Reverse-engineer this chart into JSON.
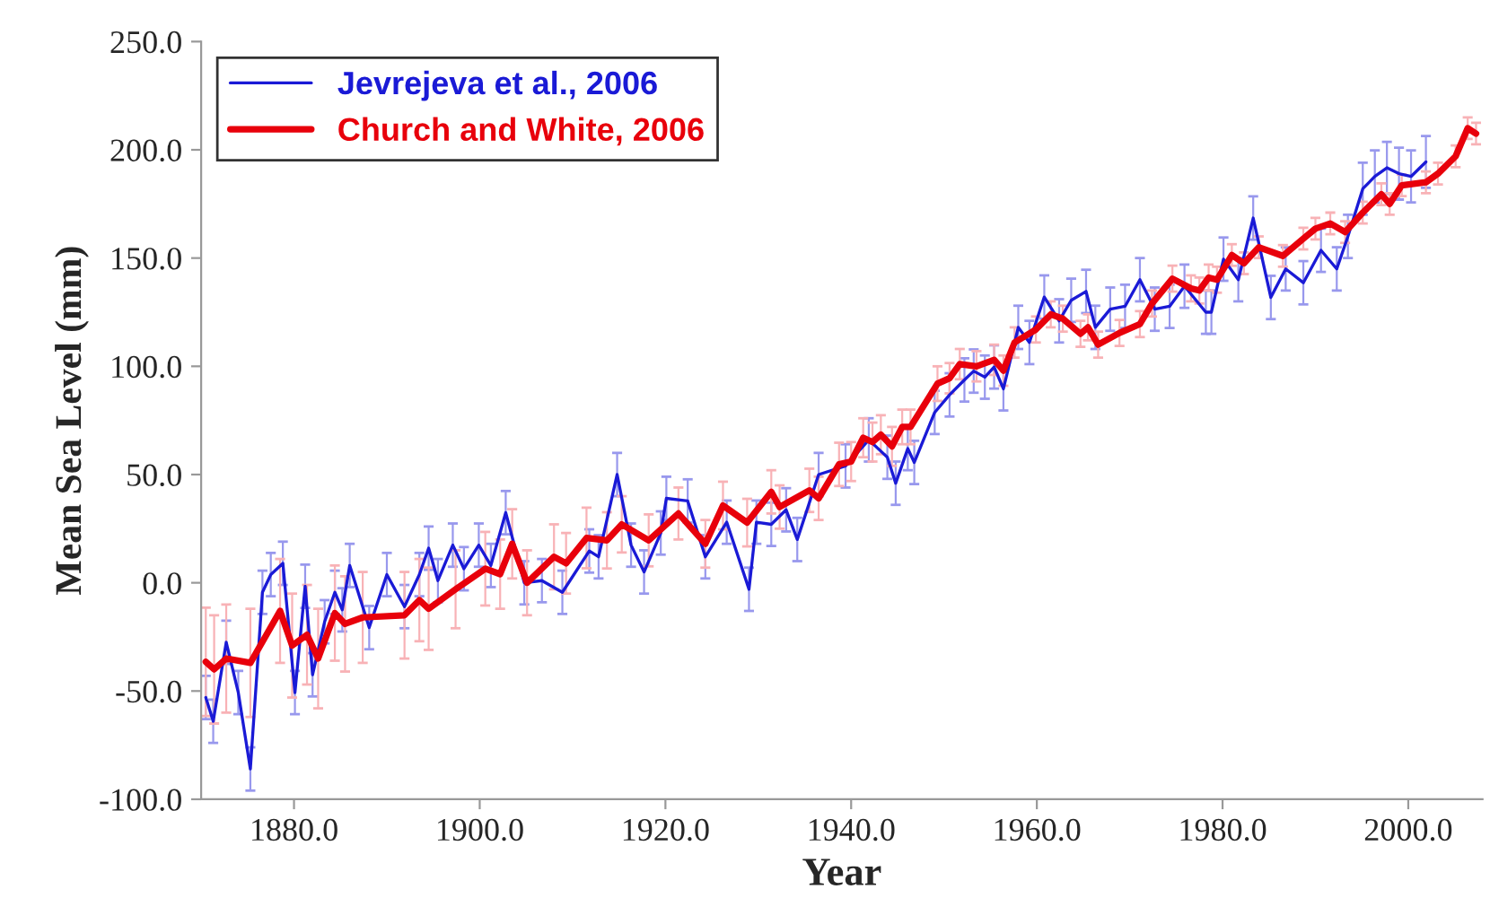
{
  "chart_data": {
    "type": "line",
    "xlabel": "Year",
    "ylabel": "Mean Sea Level (mm)",
    "xlim": [
      1870,
      2008
    ],
    "ylim": [
      -100,
      250
    ],
    "xticks": [
      {
        "value": 1880,
        "label": "1880.0"
      },
      {
        "value": 1900,
        "label": "1900.0"
      },
      {
        "value": 1920,
        "label": "1920.0"
      },
      {
        "value": 1940,
        "label": "1940.0"
      },
      {
        "value": 1960,
        "label": "1960.0"
      },
      {
        "value": 1980,
        "label": "1980.0"
      },
      {
        "value": 2000,
        "label": "2000.0"
      }
    ],
    "yticks": [
      {
        "value": -100,
        "label": "-100.0"
      },
      {
        "value": -50,
        "label": "-50.0"
      },
      {
        "value": 0,
        "label": "0.0"
      },
      {
        "value": 50,
        "label": "50.0"
      },
      {
        "value": 100,
        "label": "100.0"
      },
      {
        "value": 150,
        "label": "150.0"
      },
      {
        "value": 200,
        "label": "200.0"
      },
      {
        "value": 250,
        "label": "250.0"
      }
    ],
    "grid": false,
    "legend": "top left",
    "marker": "none",
    "line_style": "solid",
    "series": [
      {
        "name": "Jevrejeva et al., 2006",
        "color": "#1a1ad6",
        "x": [
          1870.5,
          1871.3,
          1872.7,
          1874,
          1875.3,
          1876.6,
          1877.5,
          1878.8,
          1880.1,
          1881.2,
          1882,
          1883.3,
          1884.4,
          1885.2,
          1886,
          1888.1,
          1890,
          1891.9,
          1893.5,
          1894.5,
          1895.5,
          1897.1,
          1898.3,
          1899.9,
          1901.2,
          1902.8,
          1904.8,
          1906.7,
          1908.9,
          1911.8,
          1912.8,
          1914.8,
          1916.3,
          1917.7,
          1919.5,
          1920.1,
          1922.4,
          1924.3,
          1926.6,
          1929,
          1929.8,
          1931.4,
          1933,
          1934.2,
          1936.5,
          1939.4,
          1941.9,
          1943.9,
          1944.8,
          1946.1,
          1946.8,
          1949,
          1950.6,
          1952.2,
          1953.2,
          1954.4,
          1955.4,
          1956.4,
          1958,
          1959.2,
          1960.8,
          1962.4,
          1963.7,
          1965.3,
          1966.3,
          1967.9,
          1969.5,
          1971.1,
          1972.7,
          1974.3,
          1975.9,
          1978.2,
          1978.8,
          1980.1,
          1981.7,
          1983.3,
          1985.2,
          1986.8,
          1988.7,
          1990.6,
          1992.3,
          1993.5,
          1995.1,
          1996.4,
          1997.7,
          1999,
          2000.3,
          2001.9
        ],
        "values": [
          -53,
          -64,
          -27.5,
          -50.7,
          -86,
          -4.4,
          3.8,
          9,
          -50.7,
          -1.6,
          -42.5,
          -18,
          -4.4,
          -12.5,
          8,
          -20.7,
          3.8,
          -11,
          3.8,
          16,
          1,
          17.4,
          6.5,
          17.4,
          8,
          32.4,
          0,
          1,
          -4.4,
          14.7,
          12,
          50,
          17.4,
          5,
          23,
          39,
          37.8,
          12,
          28,
          -3,
          28,
          27,
          33.7,
          20,
          50,
          54,
          66,
          58,
          46,
          62,
          55.6,
          78.7,
          86.8,
          93.7,
          97.8,
          95,
          99.7,
          89.6,
          118,
          111,
          132,
          121,
          130.5,
          134.6,
          118,
          126.4,
          127.7,
          140,
          126.4,
          127.7,
          137,
          125,
          125,
          149.5,
          140,
          168.5,
          131.8,
          145,
          138.6,
          153.6,
          145,
          160,
          182,
          187.7,
          191.7,
          189,
          187.7,
          194.4
        ],
        "errors": [
          10,
          10,
          10,
          10,
          10,
          10,
          10,
          10,
          10,
          10,
          10,
          10,
          10,
          10,
          10,
          10,
          10,
          10,
          10,
          10,
          10,
          10,
          10,
          10,
          10,
          10,
          10,
          10,
          10,
          10,
          10,
          10,
          10,
          10,
          10,
          10,
          10,
          10,
          10,
          10,
          10,
          10,
          10,
          10,
          10,
          10,
          10,
          10,
          10,
          10,
          10,
          10,
          10,
          10,
          10,
          10,
          10,
          10,
          10,
          10,
          10,
          10,
          10,
          10,
          10,
          10,
          10,
          10,
          10,
          10,
          10,
          10,
          10,
          10,
          10,
          10,
          10,
          10,
          10,
          10,
          10,
          10,
          12,
          12,
          12,
          12,
          12,
          12
        ]
      },
      {
        "name": "Church and White, 2006",
        "color": "#e8000b",
        "x": [
          1870.5,
          1871.4,
          1872.7,
          1875.3,
          1878.5,
          1879.8,
          1881.4,
          1882.6,
          1884.4,
          1885.5,
          1887.4,
          1891.9,
          1893.5,
          1894.5,
          1897.4,
          1900.6,
          1902.2,
          1903.5,
          1905.1,
          1908,
          1909.3,
          1911.5,
          1913.7,
          1915.3,
          1918.2,
          1921.4,
          1924.3,
          1926.2,
          1928.8,
          1931.4,
          1932.3,
          1935.5,
          1936.5,
          1938.7,
          1940,
          1941.3,
          1942.3,
          1943.2,
          1944.4,
          1945.5,
          1946.4,
          1949.3,
          1950.6,
          1951.7,
          1953.5,
          1955.4,
          1956.4,
          1957.6,
          1959.9,
          1961.5,
          1962.8,
          1964.7,
          1965.5,
          1966.6,
          1968.9,
          1971.1,
          1972.4,
          1974.6,
          1976.6,
          1977.5,
          1978.5,
          1979.4,
          1981,
          1982.3,
          1983.9,
          1986.5,
          1988.7,
          1990,
          1991.6,
          1993.2,
          1995.1,
          1997.1,
          1998,
          1999.3,
          2001.9,
          2003.2,
          2005.1,
          2006.4,
          2007.3
        ],
        "values": [
          -36.5,
          -40,
          -35,
          -37,
          -13,
          -29,
          -24,
          -35,
          -14,
          -19,
          -16,
          -15,
          -8,
          -12,
          -3,
          6.5,
          4,
          18,
          0,
          12,
          9,
          20.7,
          19.6,
          27,
          19.6,
          32,
          18,
          35.7,
          27.8,
          42,
          35,
          42.7,
          39,
          54.7,
          56,
          67,
          65,
          68.4,
          63,
          72,
          72,
          92,
          94.5,
          101,
          100,
          103,
          98,
          111,
          117,
          124,
          122,
          115,
          118,
          110,
          115.4,
          119.5,
          129,
          140.5,
          136,
          135,
          141,
          140,
          151.4,
          147.6,
          155,
          151,
          159,
          163.6,
          166,
          162,
          171,
          179.5,
          175,
          183.6,
          185,
          189,
          197,
          210,
          207.5
        ],
        "errors": [
          25,
          25,
          25,
          25,
          24,
          24,
          23,
          23,
          22,
          22,
          21,
          20,
          19,
          19,
          18,
          17,
          16,
          16,
          15,
          15,
          14,
          14,
          13,
          13,
          12,
          12,
          11,
          11,
          11,
          10,
          10,
          10,
          10,
          10,
          9,
          9,
          9,
          9,
          9,
          8,
          8,
          8,
          7,
          7,
          7,
          7,
          7,
          7,
          6,
          6,
          6,
          6,
          6,
          6,
          6,
          6,
          6,
          6,
          6,
          6,
          6,
          6,
          5,
          5,
          5,
          5,
          5,
          5,
          5,
          5,
          5,
          5,
          5,
          5,
          5,
          5,
          5,
          5,
          5
        ]
      }
    ]
  }
}
